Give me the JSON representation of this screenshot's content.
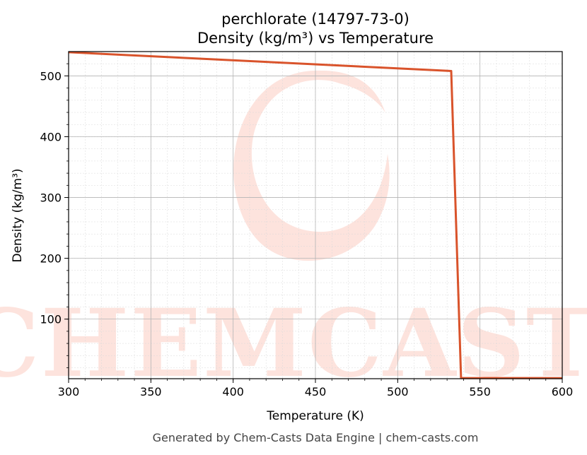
{
  "chart_data": {
    "type": "line",
    "title": "perchlorate (14797-73-0)",
    "subtitle": "Density (kg/m³) vs Temperature",
    "xlabel": "Temperature (K)",
    "ylabel": "Density (kg/m³)",
    "xlim": [
      300,
      600
    ],
    "ylim": [
      2,
      540
    ],
    "xticks": [
      300,
      350,
      400,
      450,
      500,
      550,
      600
    ],
    "yticks": [
      100,
      200,
      300,
      400,
      500
    ],
    "grid": true,
    "series": [
      {
        "color": "#d9532b",
        "x": [
          300,
          532.5,
          538.5,
          600
        ],
        "y": [
          539,
          508,
          3,
          3
        ]
      }
    ]
  },
  "watermark": {
    "text": "CHEMCASTS",
    "color": "#fde3dd"
  },
  "footer": "Generated by Chem-Casts Data Engine | chem-casts.com"
}
